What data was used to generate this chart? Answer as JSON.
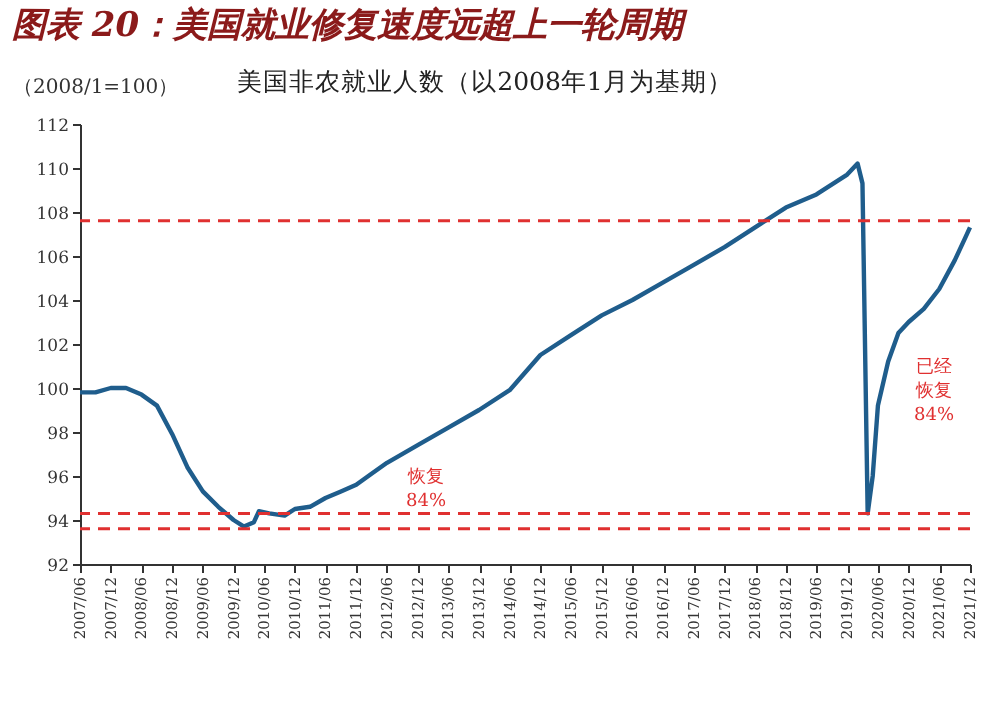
{
  "chart_data": {
    "type": "line",
    "title": "图表 20：美国就业修复速度远超上一轮周期",
    "subtitle": "美国非农就业人数（以2008年1月为基期）",
    "ylabel": "（2008/1=100）",
    "x": [
      "2007-06",
      "2007-09",
      "2007-12",
      "2008-03",
      "2008-06",
      "2008-09",
      "2008-12",
      "2009-03",
      "2009-06",
      "2009-09",
      "2009-12",
      "2010-02",
      "2010-04",
      "2010-05",
      "2010-07",
      "2010-10",
      "2010-12",
      "2011-03",
      "2011-06",
      "2011-09",
      "2011-12",
      "2012-03",
      "2012-06",
      "2012-12",
      "2013-06",
      "2013-12",
      "2014-06",
      "2014-12",
      "2015-06",
      "2015-12",
      "2016-06",
      "2016-12",
      "2017-06",
      "2017-12",
      "2018-06",
      "2018-12",
      "2019-06",
      "2019-12",
      "2020-02",
      "2020-03",
      "2020-04",
      "2020-05",
      "2020-06",
      "2020-08",
      "2020-10",
      "2020-12",
      "2021-03",
      "2021-06",
      "2021-09",
      "2021-11",
      "2021-12"
    ],
    "series": [
      {
        "color": "#1f5d8c",
        "values": [
          99.8,
          99.8,
          100.0,
          100.0,
          99.7,
          99.2,
          97.9,
          96.4,
          95.3,
          94.6,
          94.0,
          93.7,
          93.9,
          94.4,
          94.3,
          94.2,
          94.5,
          94.6,
          95.0,
          95.3,
          95.6,
          96.1,
          96.6,
          97.4,
          98.2,
          99.0,
          99.9,
          101.5,
          102.4,
          103.3,
          104.0,
          104.8,
          105.6,
          106.4,
          107.3,
          108.2,
          108.8,
          109.7,
          110.2,
          109.3,
          94.3,
          96.0,
          99.2,
          101.2,
          102.5,
          103.0,
          103.6,
          104.5,
          105.8,
          106.8,
          107.3
        ]
      }
    ],
    "xlim": [
      "2007-06",
      "2021-12"
    ],
    "xticks": [
      {
        "value": "2007-06",
        "label": "2007/06"
      },
      {
        "value": "2007-12",
        "label": "2007/12"
      },
      {
        "value": "2008-06",
        "label": "2008/06"
      },
      {
        "value": "2008-12",
        "label": "2008/12"
      },
      {
        "value": "2009-06",
        "label": "2009/06"
      },
      {
        "value": "2009-12",
        "label": "2009/12"
      },
      {
        "value": "2010-06",
        "label": "2010/06"
      },
      {
        "value": "2010-12",
        "label": "2010/12"
      },
      {
        "value": "2011-06",
        "label": "2011/06"
      },
      {
        "value": "2011-12",
        "label": "2011/12"
      },
      {
        "value": "2012-06",
        "label": "2012/06"
      },
      {
        "value": "2012-12",
        "label": "2012/12"
      },
      {
        "value": "2013-06",
        "label": "2013/06"
      },
      {
        "value": "2013-12",
        "label": "2013/12"
      },
      {
        "value": "2014-06",
        "label": "2014/06"
      },
      {
        "value": "2014-12",
        "label": "2014/12"
      },
      {
        "value": "2015-06",
        "label": "2015/06"
      },
      {
        "value": "2015-12",
        "label": "2015/12"
      },
      {
        "value": "2016-06",
        "label": "2016/06"
      },
      {
        "value": "2016-12",
        "label": "2016/12"
      },
      {
        "value": "2017-06",
        "label": "2017/06"
      },
      {
        "value": "2017-12",
        "label": "2017/12"
      },
      {
        "value": "2018-06",
        "label": "2018/06"
      },
      {
        "value": "2018-12",
        "label": "2018/12"
      },
      {
        "value": "2019-06",
        "label": "2019/06"
      },
      {
        "value": "2019-12",
        "label": "2019/12"
      },
      {
        "value": "2020-06",
        "label": "2020/06"
      },
      {
        "value": "2020-12",
        "label": "2020/12"
      },
      {
        "value": "2021-06",
        "label": "2021/06"
      },
      {
        "value": "2021-12",
        "label": "2021/12"
      }
    ],
    "ylim": [
      92,
      112
    ],
    "yticks": [
      92,
      94,
      96,
      98,
      100,
      102,
      104,
      106,
      108,
      110,
      112
    ],
    "ref_lines": [
      {
        "axis": "y",
        "value": 93.6,
        "color": "#e03030",
        "line_style": "dashed"
      },
      {
        "axis": "y",
        "value": 94.3,
        "color": "#e03030",
        "line_style": "dashed"
      },
      {
        "axis": "y",
        "value": 107.6,
        "color": "#e03030",
        "line_style": "dashed"
      }
    ],
    "annotations": [
      "恢复84%",
      "已经恢复84%"
    ],
    "marker": "none",
    "line_style": "solid"
  }
}
